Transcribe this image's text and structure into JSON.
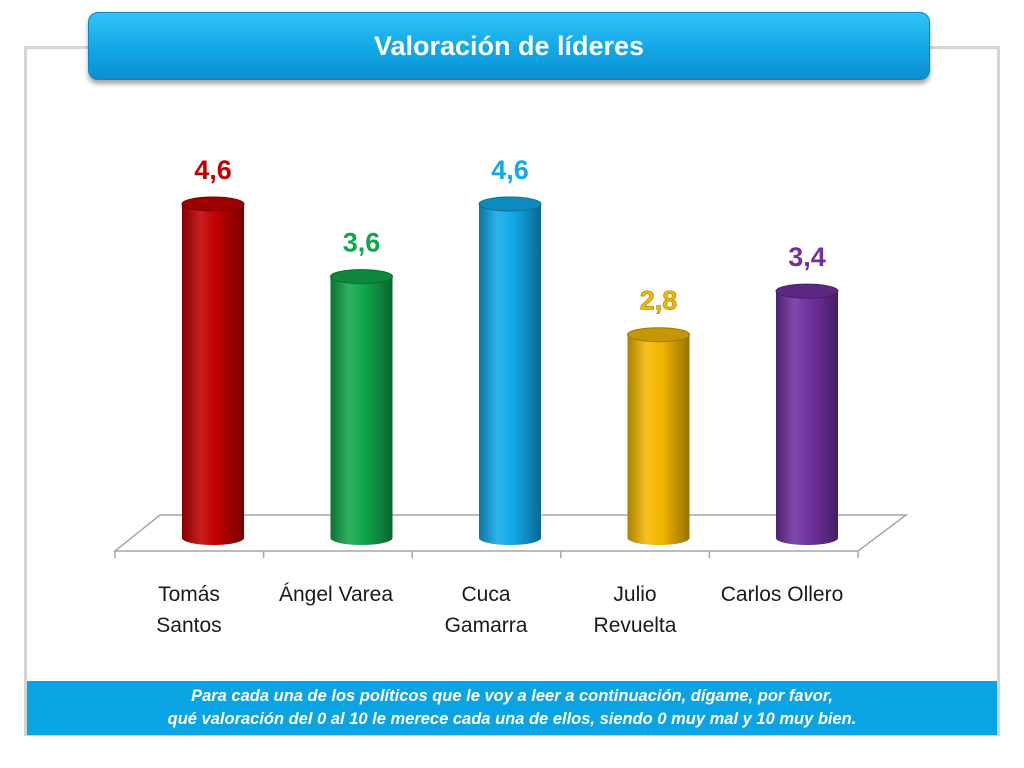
{
  "title": "Valoración de líderes",
  "footnote": {
    "line1": "Para cada una de los políticos que le voy a leer a continuación, dígame, por favor,",
    "line2": "qué valoración del 0 al 10 le merece cada una de ellos, siendo 0 muy mal y 10 muy bien."
  },
  "chart_data": {
    "type": "bar",
    "title": "Valoración de líderes",
    "categories": [
      [
        "Tomás",
        "Santos"
      ],
      [
        "Ángel Varea"
      ],
      [
        "Cuca",
        "Gamarra"
      ],
      [
        "Julio",
        "Revuelta"
      ],
      [
        "Carlos Ollero"
      ]
    ],
    "values": [
      4.6,
      3.6,
      4.6,
      2.8,
      3.4
    ],
    "value_labels": [
      "4,6",
      "3,6",
      "4,6",
      "2,8",
      "3,4"
    ],
    "colors": [
      "#c00000",
      "#11a54a",
      "#11a9e8",
      "#f2b800",
      "#7030a0"
    ],
    "ylim": [
      0,
      4.6
    ],
    "grid": false,
    "legend": "none",
    "style": "3d-cylinder"
  }
}
